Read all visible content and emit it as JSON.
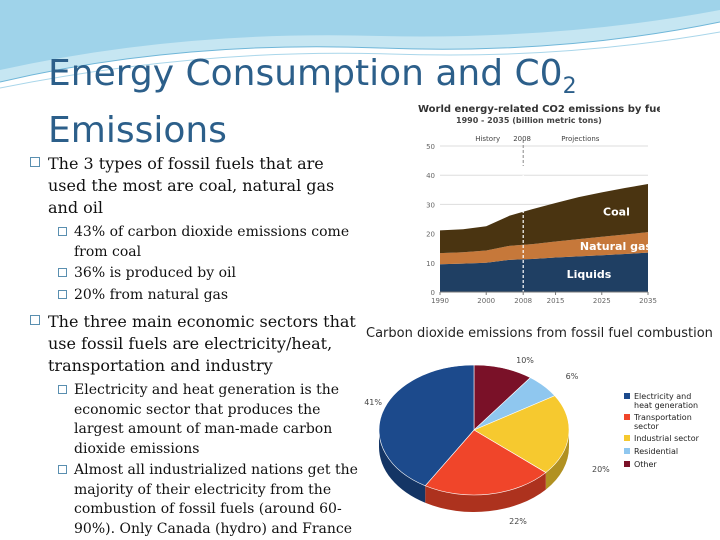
{
  "slide": {
    "title_main": "Energy Consumption and C0",
    "title_sub": "2",
    "title_line2": "Emissions",
    "bullets": [
      {
        "text": "The 3 types of fossil fuels that are used the most are coal, natural gas and oil",
        "sub": [
          "43% of carbon dioxide emissions come from coal",
          "36% is produced by oil",
          "20% from natural gas"
        ]
      },
      {
        "text": "The three main economic sectors that use fossil fuels are  electricity/heat, transportation and industry",
        "sub": [
          "Electricity and heat generation is the economic sector that produces the largest amount of man-made carbon dioxide emissions",
          "Almost all industrialized nations get the majority of their electricity from the combustion of fossil fuels (around 60-90%). Only Canada (hydro) and France (nuclear) are the exception"
        ]
      }
    ]
  },
  "chart_data": [
    {
      "type": "area",
      "title": "World energy-related CO2 emissions by fuel",
      "subtitle": "1990 - 2035 (billion metric tons)",
      "x": [
        1990,
        1995,
        2000,
        2005,
        2008,
        2010,
        2015,
        2020,
        2025,
        2030,
        2035
      ],
      "x_ticks": [
        "1990",
        "2000",
        "2008",
        "2015",
        "2025",
        "2035"
      ],
      "ylim": [
        0,
        50
      ],
      "y_ticks": [
        "0",
        "10",
        "20",
        "30",
        "40",
        "50"
      ],
      "grid": true,
      "stacked": true,
      "annotations": [
        "History",
        "2008",
        "Projections"
      ],
      "divider_x": 2008,
      "series": [
        {
          "name": "Liquids",
          "color": "#1f3f63",
          "values": [
            9.5,
            9.7,
            10.0,
            11.0,
            11.2,
            11.3,
            11.8,
            12.2,
            12.6,
            13.0,
            13.5
          ]
        },
        {
          "name": "Natural gas",
          "color": "#c6783a",
          "values": [
            3.8,
            3.9,
            4.2,
            4.8,
            5.0,
            5.1,
            5.5,
            5.9,
            6.3,
            6.7,
            7.0
          ]
        },
        {
          "name": "Coal",
          "color": "#4a3411",
          "values": [
            7.8,
            7.9,
            8.3,
            10.3,
            11.3,
            12.0,
            13.2,
            14.4,
            15.2,
            15.9,
            16.5
          ]
        }
      ]
    },
    {
      "type": "pie",
      "title": "Carbon dioxide emissions from fossil fuel combustion",
      "labels": [
        "Electricity and heat generation",
        "Transportation sector",
        "Industrial sector",
        "Residential",
        "Other"
      ],
      "values": [
        41,
        22,
        20,
        6,
        10
      ],
      "value_labels": [
        "41%",
        "22%",
        "20%",
        "6%",
        "10%"
      ],
      "colors": [
        "#1c4a8c",
        "#f0452a",
        "#f6c92f",
        "#8fc7ef",
        "#7a1128"
      ],
      "legend": "right"
    }
  ]
}
